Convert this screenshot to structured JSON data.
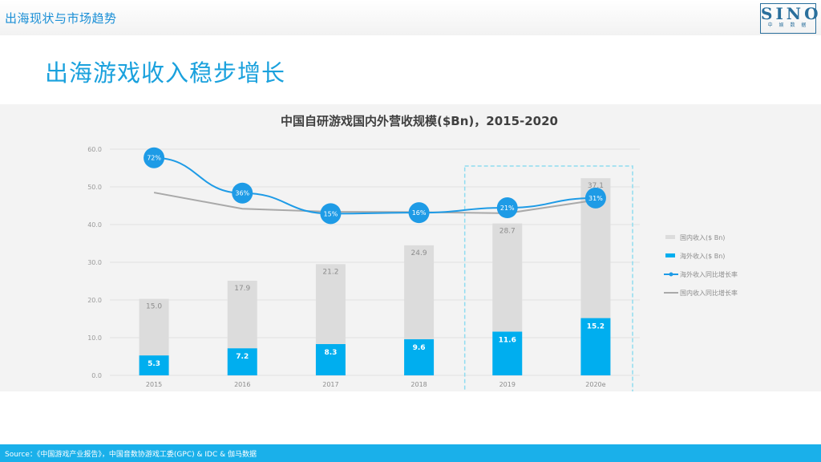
{
  "header": {
    "section_label": "出海现状与市场趋势",
    "logo_text": "SINO",
    "logo_subtext": "中 娱 数 据"
  },
  "page": {
    "title": "出海游戏收入稳步增长"
  },
  "chart_data": {
    "type": "bar",
    "title": "中国自研游戏国内外营收规模($Bn)，2015-2020",
    "categories": [
      "2015",
      "2016",
      "2017",
      "2018",
      "2019",
      "2020e"
    ],
    "ylim": [
      0,
      60
    ],
    "yticks": [
      "0.0",
      "10.0",
      "20.0",
      "30.0",
      "40.0",
      "50.0",
      "60.0"
    ],
    "stacked": true,
    "grid": true,
    "legend_position": "right",
    "highlight_categories": [
      "2019",
      "2020e"
    ],
    "series": [
      {
        "name": "海外收入($ Bn)",
        "kind": "bar",
        "color": "#00aeef",
        "values": [
          5.3,
          7.2,
          8.3,
          9.6,
          11.6,
          15.2
        ],
        "labels": [
          "5.3",
          "7.2",
          "8.3",
          "9.6",
          "11.6",
          "15.2"
        ]
      },
      {
        "name": "国内收入($ Bn)",
        "kind": "bar",
        "color": "#dcdcdc",
        "values": [
          15.0,
          17.9,
          21.2,
          24.9,
          28.7,
          37.1
        ],
        "labels": [
          "15.0",
          "17.9",
          "21.2",
          "24.9",
          "28.7",
          "37.1"
        ]
      },
      {
        "name": "海外收入同比增长率",
        "kind": "line",
        "color": "#1e9be6",
        "values": [
          72,
          36,
          15,
          16,
          21,
          31
        ],
        "labels": [
          "72%",
          "36%",
          "15%",
          "16%",
          "21%",
          "31%"
        ]
      },
      {
        "name": "国内收入同比增长率",
        "kind": "line",
        "color": "#a9a9a9",
        "values": [
          null,
          null,
          null,
          null,
          null,
          null
        ],
        "labels": []
      }
    ]
  },
  "footer": {
    "source": "Source：《中国游戏产业报告》，中国音数协游戏工委(GPC) & IDC & 伽马数据"
  }
}
